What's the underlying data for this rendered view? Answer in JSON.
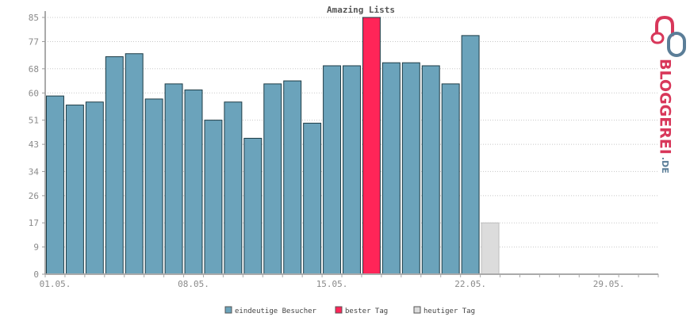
{
  "chart_data": {
    "type": "bar",
    "title": "Amazing Lists",
    "xlabel": "",
    "ylabel": "",
    "ylim": [
      0,
      85
    ],
    "y_ticks": [
      0,
      9,
      17,
      26,
      34,
      43,
      51,
      60,
      68,
      77,
      85
    ],
    "x_tick_labels": [
      "01.05.",
      "08.05.",
      "15.05.",
      "22.05.",
      "29.05."
    ],
    "x_tick_day_index": [
      1,
      8,
      15,
      22,
      29
    ],
    "days_in_axis": 31,
    "grid": true,
    "legend_position": "bottom",
    "values": [
      59,
      56,
      57,
      72,
      73,
      58,
      63,
      61,
      51,
      57,
      45,
      63,
      64,
      50,
      69,
      69,
      85,
      70,
      70,
      69,
      63,
      79,
      17
    ],
    "best_day_index": 16,
    "today_index": 22,
    "colors": {
      "visitors": "#6ba3bb",
      "best": "#ff2558",
      "today": "#dcdcdc",
      "bar_outline": "#1e3c46"
    },
    "legend": [
      {
        "label": "eindeutige Besucher",
        "color": "#6ba3bb"
      },
      {
        "label": "bester Tag",
        "color": "#ff2558"
      },
      {
        "label": "heutiger Tag",
        "color": "#dcdcdc"
      }
    ]
  },
  "brand": {
    "main": "BLOGGEREI",
    "suffix": ".DE",
    "colors": {
      "red": "#d8375a",
      "blue": "#5b7e98"
    }
  }
}
